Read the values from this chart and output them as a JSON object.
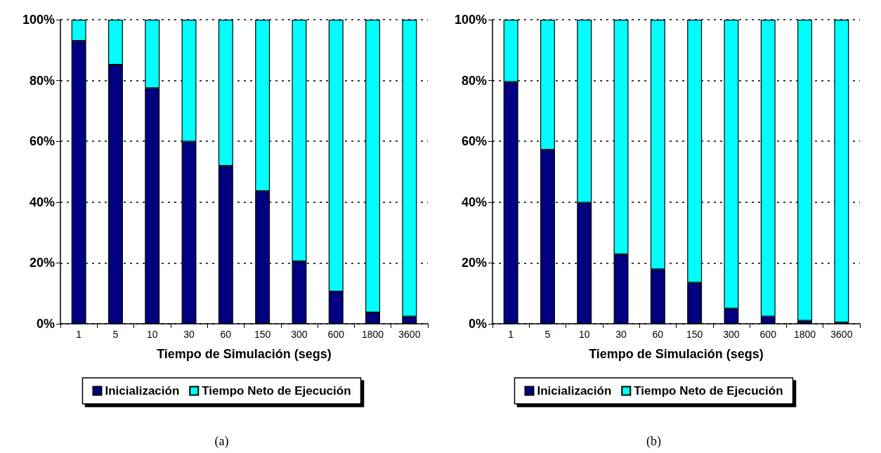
{
  "chart_data": [
    {
      "type": "bar",
      "stacked": true,
      "categories": [
        "1",
        "5",
        "10",
        "30",
        "60",
        "150",
        "300",
        "600",
        "1800",
        "3600"
      ],
      "xlabel": "Tiempo de Simulación (segs)",
      "ylim": [
        0,
        100
      ],
      "yticks": [
        {
          "value": 0,
          "label": "0%"
        },
        {
          "value": 20,
          "label": "20%"
        },
        {
          "value": 40,
          "label": "40%"
        },
        {
          "value": 60,
          "label": "60%"
        },
        {
          "value": 80,
          "label": "80%"
        },
        {
          "value": 100,
          "label": "100%"
        }
      ],
      "grid": "y",
      "legend": "bottom",
      "annotations": [
        "(a)"
      ],
      "series": [
        {
          "name": "Inicialización",
          "color": "#000080",
          "values": [
            93.0,
            85.2,
            77.5,
            59.9,
            51.9,
            43.6,
            20.5,
            10.6,
            3.7,
            2.4
          ]
        },
        {
          "name": "Tiempo Neto de Ejecución",
          "color": "#00ffff",
          "values": [
            7.0,
            14.8,
            22.5,
            40.1,
            48.1,
            56.4,
            79.5,
            89.4,
            96.3,
            97.6
          ]
        }
      ]
    },
    {
      "type": "bar",
      "stacked": true,
      "categories": [
        "1",
        "5",
        "10",
        "30",
        "60",
        "150",
        "300",
        "600",
        "1800",
        "3600"
      ],
      "xlabel": "Tiempo de Simulación (segs)",
      "ylim": [
        0,
        100
      ],
      "yticks": [
        {
          "value": 0,
          "label": "0%"
        },
        {
          "value": 20,
          "label": "20%"
        },
        {
          "value": 40,
          "label": "40%"
        },
        {
          "value": 60,
          "label": "60%"
        },
        {
          "value": 80,
          "label": "80%"
        },
        {
          "value": 100,
          "label": "100%"
        }
      ],
      "grid": "y",
      "legend": "bottom",
      "annotations": [
        "(b)"
      ],
      "series": [
        {
          "name": "Inicialización",
          "color": "#000080",
          "values": [
            79.5,
            57.2,
            39.8,
            22.8,
            17.9,
            13.5,
            5.0,
            2.4,
            1.0,
            0.4
          ]
        },
        {
          "name": "Tiempo Neto de Ejecución",
          "color": "#00ffff",
          "values": [
            20.5,
            42.8,
            60.2,
            77.2,
            82.1,
            86.5,
            95.0,
            97.6,
            99.0,
            99.6
          ]
        }
      ]
    }
  ]
}
